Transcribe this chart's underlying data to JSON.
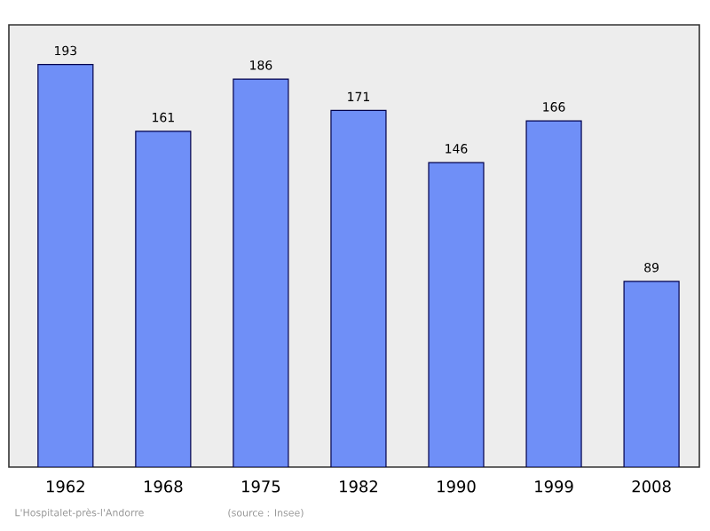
{
  "chart_data": {
    "type": "bar",
    "categories": [
      "1962",
      "1968",
      "1975",
      "1982",
      "1990",
      "1999",
      "2008"
    ],
    "values": [
      193,
      161,
      186,
      171,
      146,
      166,
      89
    ],
    "color": "#6f8ff7",
    "ylim": [
      0,
      212
    ],
    "data_labels": true,
    "tick_labels": "x",
    "annotations": [
      "L'Hospitalet-près-l'Andorre",
      "(source : Insee)"
    ]
  }
}
